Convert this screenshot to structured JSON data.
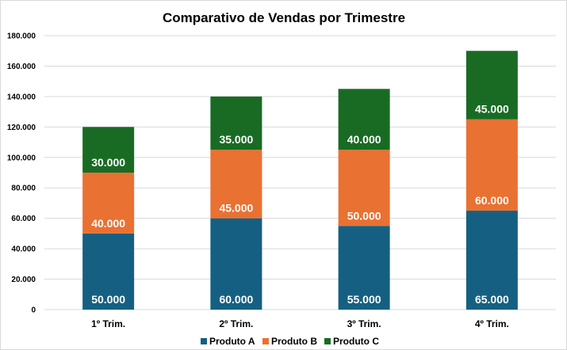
{
  "chart_data": {
    "type": "bar",
    "stacked": true,
    "title": "Comparativo de Vendas por Trimestre",
    "categories": [
      "1º Trim.",
      "2º Trim.",
      "3º Trim.",
      "4º Trim."
    ],
    "series": [
      {
        "name": "Produto A",
        "color": "#156082",
        "values": [
          50000,
          60000,
          55000,
          65000
        ],
        "labels": [
          "50.000",
          "60.000",
          "55.000",
          "65.000"
        ]
      },
      {
        "name": "Produto B",
        "color": "#E97132",
        "values": [
          40000,
          45000,
          50000,
          60000
        ],
        "labels": [
          "40.000",
          "45.000",
          "50.000",
          "60.000"
        ]
      },
      {
        "name": "Produto C",
        "color": "#196B24",
        "values": [
          30000,
          35000,
          40000,
          45000
        ],
        "labels": [
          "30.000",
          "35.000",
          "40.000",
          "45.000"
        ]
      }
    ],
    "ylim": [
      0,
      180000
    ],
    "yticks": [
      0,
      20000,
      40000,
      60000,
      80000,
      100000,
      120000,
      140000,
      160000,
      180000
    ],
    "ytick_labels": [
      "0",
      "20.000",
      "40.000",
      "60.000",
      "80.000",
      "100.000",
      "120.000",
      "140.000",
      "160.000",
      "180.000"
    ],
    "grid": true,
    "legend_position": "bottom"
  }
}
